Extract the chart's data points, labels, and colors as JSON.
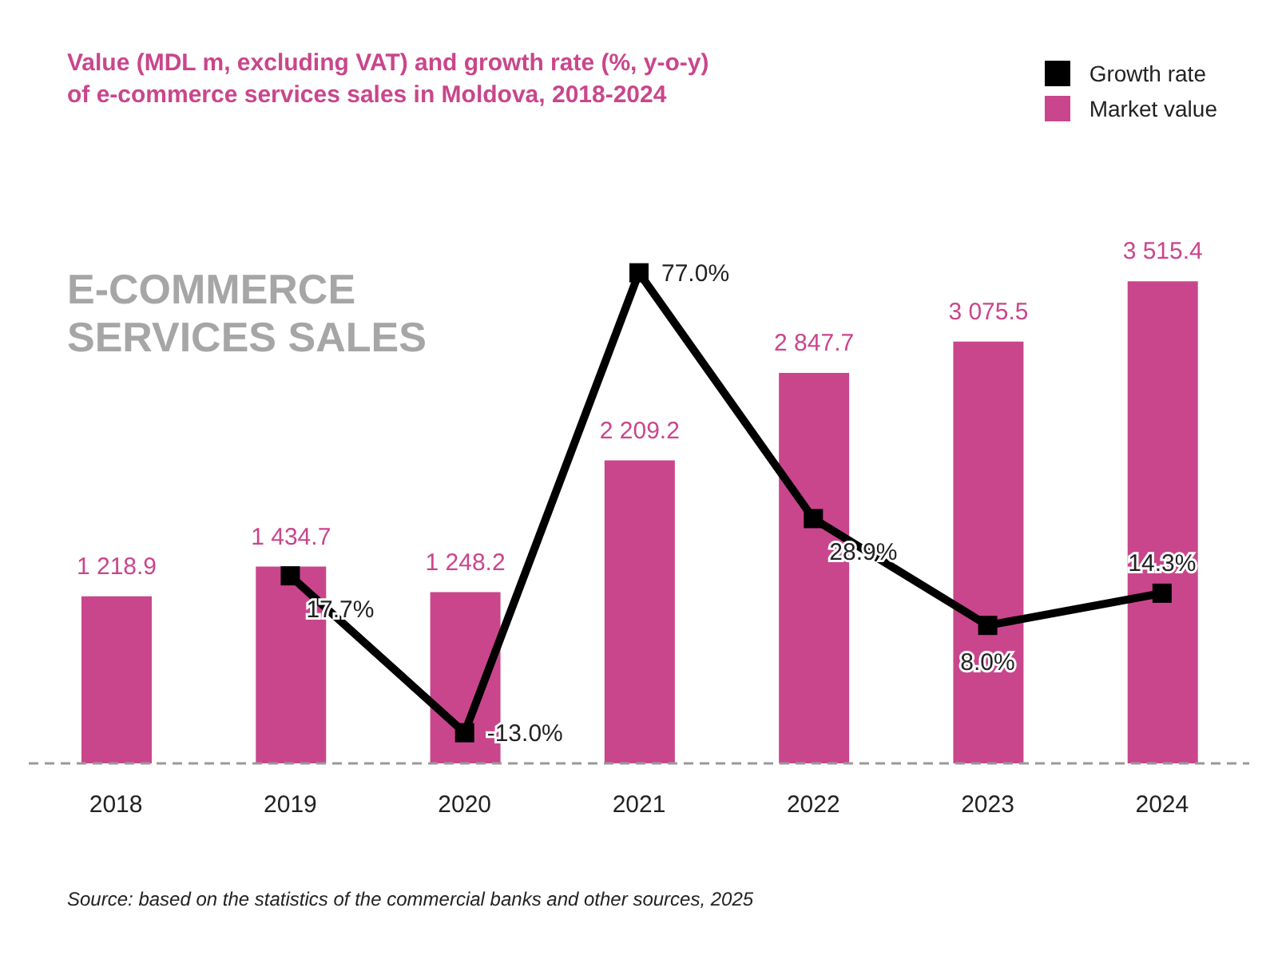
{
  "chart_data": {
    "type": "bar",
    "title": "Value (MDL m, excluding VAT) and growth rate (%, y-o-y)\nof e-commerce services sales in Moldova, 2018-2024",
    "categories": [
      "2018",
      "2019",
      "2020",
      "2021",
      "2022",
      "2023",
      "2024"
    ],
    "series": [
      {
        "name": "Growth rate",
        "type": "line",
        "axis": "y2",
        "color": "#000000",
        "values": [
          null,
          17.7,
          -13.0,
          77.0,
          28.9,
          8.0,
          14.3
        ],
        "value_labels": [
          null,
          "17.7%",
          "-13.0%",
          "77.0%",
          "28.9%",
          "8.0%",
          "14.3%"
        ]
      },
      {
        "name": "Market value",
        "color": "#c9468c",
        "values": [
          1218.9,
          1434.7,
          1248.2,
          2209.2,
          2847.7,
          3075.5,
          3515.4
        ],
        "value_labels": [
          "1 218.9",
          "1 434.7",
          "1 248.2",
          "2 209.2",
          "2 847.7",
          "3 075.5",
          "3 515.4"
        ]
      }
    ],
    "legend": "top right",
    "marker": "square",
    "line_style": "solid",
    "tick_labels": "x",
    "annotations": [
      "E-COMMERCE\nSERVICES SALES",
      "Source: based on the statistics of the commercial banks and other sources, 2025"
    ]
  }
}
